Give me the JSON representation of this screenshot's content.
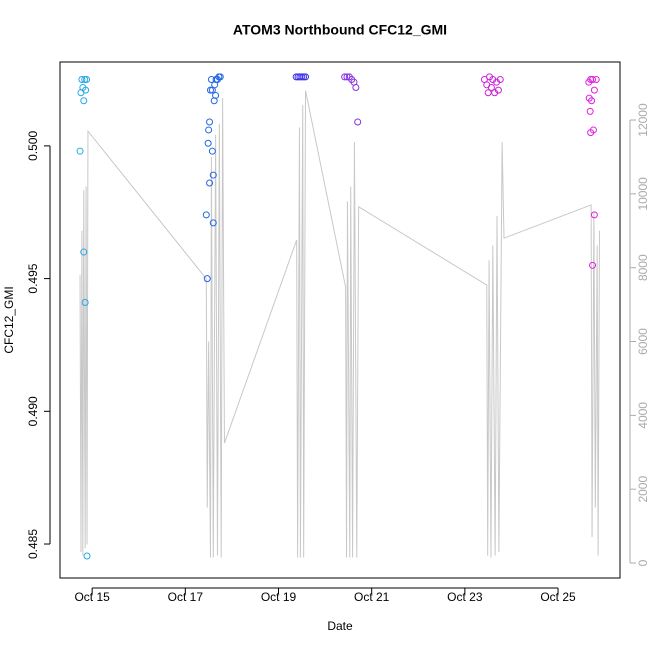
{
  "chart_data": {
    "type": "scatter",
    "title": "ATOM3 Northbound CFC12_GMI",
    "x_label": "Date",
    "y_label": "CFC12_GMI",
    "xlim": [
      14.31,
      26.33
    ],
    "xticks": [
      {
        "value": 15,
        "label": "Oct 15"
      },
      {
        "value": 17,
        "label": "Oct 17"
      },
      {
        "value": 19,
        "label": "Oct 19"
      },
      {
        "value": 21,
        "label": "Oct 21"
      },
      {
        "value": 23,
        "label": "Oct 23"
      },
      {
        "value": 25,
        "label": "Oct 25"
      }
    ],
    "ylim": [
      0.48372,
      0.50316
    ],
    "yticks": [
      0.485,
      {
        "value": 0.49,
        "label": "0.490"
      },
      0.495,
      {
        "value": 0.5,
        "label": "0.500"
      }
    ],
    "y2lim": [
      -406,
      13572
    ],
    "y2ticks": [
      0,
      2000,
      4000,
      6000,
      8000,
      10000,
      12000
    ],
    "x": [
      14.76,
      14.78,
      14.8,
      14.82,
      14.84,
      14.86,
      14.88,
      14.74,
      14.82,
      14.85,
      14.89,
      17.45,
      17.47,
      17.49,
      17.5,
      17.52,
      17.52,
      17.54,
      17.56,
      17.58,
      17.6,
      17.6,
      17.62,
      17.63,
      17.66,
      17.69,
      17.72,
      17.75,
      17.58,
      17.65,
      19.38,
      19.42,
      19.46,
      19.5,
      19.54,
      19.58,
      20.42,
      20.47,
      20.52,
      20.57,
      20.62,
      20.66,
      20.7,
      23.42,
      23.47,
      23.5,
      23.53,
      23.57,
      23.6,
      23.64,
      23.68,
      23.72,
      23.76,
      25.66,
      25.7,
      25.74,
      25.78,
      25.82,
      25.67,
      25.72,
      25.69,
      25.76,
      25.7,
      25.78,
      25.74
    ],
    "values": [
      0.502,
      0.5025,
      0.5022,
      0.5017,
      0.5025,
      0.5021,
      0.5025,
      0.4998,
      0.496,
      0.4941,
      0.48455,
      0.4974,
      0.495,
      0.5001,
      0.5006,
      0.5009,
      0.4986,
      0.5021,
      0.5025,
      0.4998,
      0.4989,
      0.4971,
      0.5017,
      0.5023,
      0.5025,
      0.5025,
      0.5026,
      0.5026,
      0.5021,
      0.5019,
      0.5026,
      0.5026,
      0.5026,
      0.5026,
      0.5026,
      0.5026,
      0.5026,
      0.5026,
      0.5026,
      0.5025,
      0.5024,
      0.5022,
      0.5009,
      0.5025,
      0.5023,
      0.502,
      0.5026,
      0.5022,
      0.5025,
      0.502,
      0.5024,
      0.5021,
      0.5025,
      0.5024,
      0.5025,
      0.5025,
      0.5021,
      0.5025,
      0.5018,
      0.5017,
      0.5013,
      0.5006,
      0.5005,
      0.4974,
      0.4955
    ],
    "colors": [
      "#2aa7e8",
      "#2aa7e8",
      "#2aa7e8",
      "#2aa7e8",
      "#2aa7e8",
      "#2aa7e8",
      "#2aa7e8",
      "#2aa7e8",
      "#2aa7e8",
      "#2aa7e8",
      "#2aa7e8",
      "#2266e6",
      "#2266e6",
      "#2266e6",
      "#2266e6",
      "#2266e6",
      "#2266e6",
      "#2266e6",
      "#2266e6",
      "#2266e6",
      "#2266e6",
      "#2266e6",
      "#2266e6",
      "#2266e6",
      "#2266e6",
      "#2266e6",
      "#2266e6",
      "#2266e6",
      "#2266e6",
      "#2266e6",
      "#3c30ea",
      "#3c30ea",
      "#3c30ea",
      "#3c30ea",
      "#3c30ea",
      "#3c30ea",
      "#8833e0",
      "#8833e0",
      "#8833e0",
      "#8833e0",
      "#8833e0",
      "#8833e0",
      "#8833e0",
      "#cc22d8",
      "#cc22d8",
      "#cc22d8",
      "#cc22d8",
      "#cc22d8",
      "#cc22d8",
      "#cc22d8",
      "#cc22d8",
      "#cc22d8",
      "#cc22d8",
      "#e022e0",
      "#e022e0",
      "#e022e0",
      "#e022e0",
      "#e022e0",
      "#e022e0",
      "#e022e0",
      "#e022e0",
      "#e022e0",
      "#e022e0",
      "#e022e0",
      "#e022e0"
    ],
    "line": {
      "axis": "y2",
      "color": "#c8c8c8",
      "x": [
        14.74,
        14.76,
        14.78,
        14.8,
        14.82,
        14.85,
        14.87,
        14.89,
        14.91,
        17.45,
        17.47,
        17.5,
        17.54,
        17.56,
        17.6,
        17.65,
        17.69,
        17.73,
        17.77,
        17.8,
        17.84,
        19.39,
        19.41,
        19.45,
        19.47,
        19.52,
        19.54,
        19.58,
        20.44,
        20.46,
        20.48,
        20.53,
        20.55,
        20.59,
        20.63,
        20.68,
        20.72,
        23.47,
        23.49,
        23.52,
        23.56,
        23.6,
        23.65,
        23.69,
        23.73,
        23.8,
        23.84,
        25.71,
        25.73,
        25.77,
        25.8,
        25.84,
        25.86,
        25.89
      ],
      "values": [
        7800,
        300,
        9000,
        200,
        10100,
        400,
        10200,
        500,
        11700,
        7700,
        1500,
        6000,
        150,
        11000,
        150,
        11600,
        200,
        11900,
        150,
        12600,
        3250,
        8750,
        150,
        11800,
        150,
        12400,
        150,
        12800,
        7480,
        150,
        9800,
        150,
        10200,
        150,
        11400,
        150,
        9650,
        7530,
        200,
        8200,
        150,
        8600,
        200,
        9400,
        300,
        11400,
        8800,
        9700,
        700,
        9500,
        1500,
        8600,
        200,
        9000
      ]
    }
  }
}
